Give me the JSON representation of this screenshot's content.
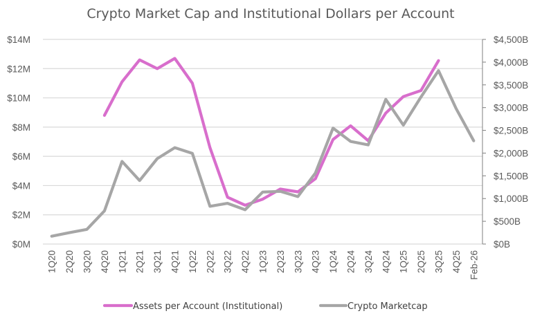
{
  "chart_data": {
    "type": "line",
    "title": "Crypto Market Cap and Institutional Dollars per Account",
    "categories": [
      "1Q20",
      "2Q20",
      "3Q20",
      "4Q20",
      "1Q21",
      "2Q21",
      "3Q21",
      "4Q21",
      "1Q22",
      "2Q22",
      "3Q22",
      "4Q22",
      "1Q23",
      "2Q23",
      "3Q23",
      "4Q23",
      "1Q24",
      "2Q24",
      "3Q24",
      "4Q24",
      "1Q25",
      "2Q25",
      "3Q25",
      "4Q25",
      "Feb-26"
    ],
    "y_left": {
      "ylim": [
        0,
        14
      ],
      "unit": "M",
      "tick_labels": [
        "$0M",
        "$2M",
        "$4M",
        "$6M",
        "$8M",
        "$10M",
        "$12M",
        "$14M"
      ],
      "tick_values": [
        0,
        2,
        4,
        6,
        8,
        10,
        12,
        14
      ]
    },
    "y_right": {
      "ylim": [
        0,
        4500
      ],
      "unit": "B",
      "tick_labels": [
        "$0B",
        "$500B",
        "$1,000B",
        "$1,500B",
        "$2,000B",
        "$2,500B",
        "$3,000B",
        "$3,500B",
        "$4,000B",
        "$4,500B"
      ],
      "tick_values": [
        0,
        500,
        1000,
        1500,
        2000,
        2500,
        3000,
        3500,
        4000,
        4500
      ]
    },
    "grid": true,
    "legend_position": "bottom",
    "series": [
      {
        "name": "Assets per Account (Institutional)",
        "axis": "left",
        "color": "#d86ecc",
        "values": [
          null,
          null,
          null,
          8.8,
          11.1,
          12.6,
          12.0,
          12.7,
          11.0,
          6.6,
          3.2,
          2.66,
          3.07,
          3.76,
          3.57,
          4.47,
          7.15,
          8.09,
          7.07,
          8.96,
          10.09,
          10.5,
          12.55,
          null,
          null
        ]
      },
      {
        "name": "Crypto Marketcap",
        "axis": "right",
        "color": "#a6a6a6",
        "values": [
          172,
          250,
          323,
          728,
          1816,
          1396,
          1877,
          2120,
          1993,
          830,
          895,
          754,
          1143,
          1158,
          1043,
          1563,
          2549,
          2256,
          2180,
          3182,
          2615,
          3232,
          3813,
          2979,
          2271
        ]
      }
    ]
  }
}
